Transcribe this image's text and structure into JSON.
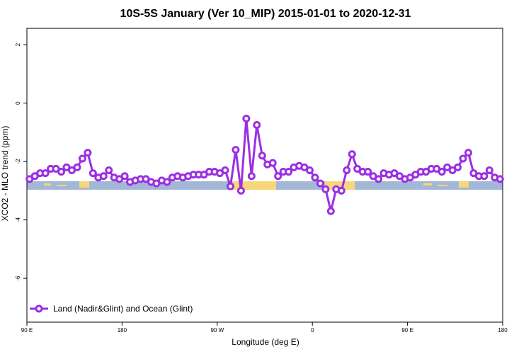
{
  "chart_data": {
    "type": "line",
    "title": "10S-5S January (Ver 10_MIP)   2015-01-01 to 2020-12-31",
    "xlabel": "Longitude (deg E)",
    "ylabel": "XCO2 - MLO trend (ppm)",
    "x": [
      92.5,
      97.5,
      102.5,
      107.5,
      112.5,
      117.5,
      122.5,
      127.5,
      132.5,
      137.5,
      142.5,
      147.5,
      152.5,
      157.5,
      162.5,
      167.5,
      172.5,
      177.5,
      182.5,
      187.5,
      192.5,
      197.5,
      202.5,
      207.5,
      212.5,
      217.5,
      222.5,
      227.5,
      232.5,
      237.5,
      242.5,
      247.5,
      252.5,
      257.5,
      262.5,
      267.5,
      272.5,
      277.5,
      282.5,
      287.5,
      292.5,
      297.5,
      302.5,
      307.5,
      312.5,
      317.5,
      322.5,
      327.5,
      332.5,
      337.5,
      342.5,
      347.5,
      352.5,
      357.5,
      362.5,
      367.5,
      372.5,
      377.5,
      382.5,
      387.5,
      392.5,
      397.5,
      402.5,
      407.5,
      412.5,
      417.5,
      422.5,
      427.5,
      432.5,
      437.5,
      442.5,
      447.5,
      452.5,
      457.5,
      462.5,
      467.5,
      472.5,
      477.5,
      482.5,
      487.5,
      492.5,
      497.5,
      502.5,
      507.5,
      512.5,
      517.5,
      522.5,
      527.5,
      532.5,
      537.5
    ],
    "series": [
      {
        "name": "Land (Nadir&Glint) and Ocean (Glint)",
        "color": "#9b2fe3",
        "values": [
          -2.6,
          -2.5,
          -2.4,
          -2.4,
          -2.25,
          -2.25,
          -2.35,
          -2.2,
          -2.3,
          -2.2,
          -1.9,
          -1.7,
          -2.4,
          -2.55,
          -2.5,
          -2.3,
          -2.55,
          -2.6,
          -2.5,
          -2.7,
          -2.65,
          -2.6,
          -2.6,
          -2.7,
          -2.75,
          -2.65,
          -2.7,
          -2.55,
          -2.5,
          -2.55,
          -2.5,
          -2.45,
          -2.45,
          -2.45,
          -2.35,
          -2.35,
          -2.4,
          -2.3,
          -2.85,
          -1.6,
          -3.0,
          -0.53,
          -2.5,
          -0.75,
          -1.8,
          -2.1,
          -2.05,
          -2.5,
          -2.35,
          -2.35,
          -2.2,
          -2.15,
          -2.2,
          -2.3,
          -2.55,
          -2.75,
          -2.95,
          -3.7,
          -2.95,
          -3.0,
          -2.3,
          -1.75,
          -2.25,
          -2.35,
          -2.35,
          -2.5,
          -2.6,
          -2.4,
          -2.45,
          -2.4,
          -2.5,
          -2.6,
          -2.55,
          -2.45,
          -2.35,
          -2.35,
          -2.25,
          -2.25,
          -2.35,
          -2.2,
          -2.3,
          -2.2,
          -1.9,
          -1.7,
          -2.4,
          -2.5,
          -2.5,
          -2.3,
          -2.55,
          -2.6
        ]
      }
    ],
    "xlim": [
      90,
      540
    ],
    "xticks": [
      {
        "value": 90,
        "label": "90 E"
      },
      180,
      {
        "value": 270,
        "label": "90 W"
      },
      {
        "value": 360,
        "label": "0"
      },
      {
        "value": 450,
        "label": "90 E"
      },
      {
        "value": 540,
        "label": "180"
      }
    ],
    "ylim": [
      -7.5,
      2.56
    ],
    "yticks": [
      2,
      0,
      -2,
      -4,
      -6
    ],
    "legend": "bottom-left"
  }
}
